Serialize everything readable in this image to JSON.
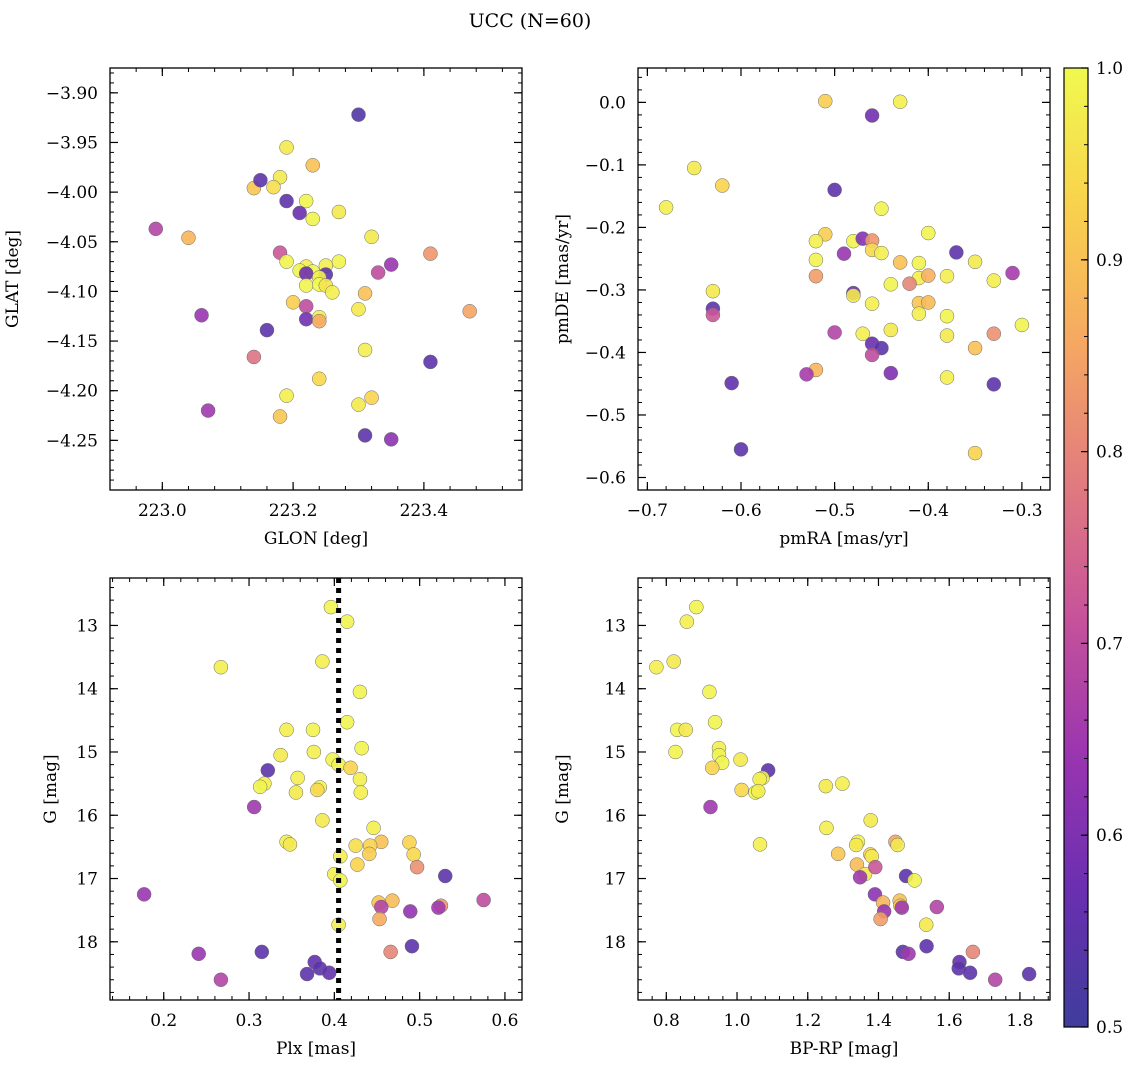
{
  "figure": {
    "title": "UCC (N=60)"
  },
  "colorbar": {
    "min": 0.5,
    "max": 1.0,
    "ticks": [
      "0.5",
      "0.6",
      "0.7",
      "0.8",
      "0.9",
      "1.0"
    ],
    "colormap": "plasma",
    "colors": [
      "#3f3d9c",
      "#6a2fb0",
      "#9b35b0",
      "#c7539a",
      "#e27c7e",
      "#f6a862",
      "#f9d24d",
      "#f0f94e"
    ]
  },
  "chart_data": [
    {
      "type": "scatter",
      "xlabel": "GLON [deg]",
      "ylabel": "GLAT [deg]",
      "xlim": [
        222.92,
        223.55
      ],
      "ylim": [
        -4.3,
        -3.875
      ],
      "xticks": [
        "223.0",
        "223.2",
        "223.4"
      ],
      "yticks": [
        "−3.90",
        "−3.95",
        "−4.00",
        "−4.05",
        "−4.10",
        "−4.15",
        "−4.20",
        "−4.25"
      ],
      "points": [
        [
          223.3,
          -3.922,
          0.53
        ],
        [
          223.19,
          -3.955,
          0.97
        ],
        [
          223.23,
          -3.973,
          0.9
        ],
        [
          223.14,
          -3.996,
          0.91
        ],
        [
          223.15,
          -3.988,
          0.55
        ],
        [
          223.18,
          -3.985,
          0.97
        ],
        [
          223.17,
          -3.995,
          0.95
        ],
        [
          223.19,
          -4.009,
          0.55
        ],
        [
          223.22,
          -4.009,
          0.99
        ],
        [
          223.21,
          -4.021,
          0.57
        ],
        [
          223.23,
          -4.027,
          0.99
        ],
        [
          223.27,
          -4.02,
          0.97
        ],
        [
          222.99,
          -4.037,
          0.68
        ],
        [
          223.04,
          -4.046,
          0.88
        ],
        [
          223.32,
          -4.045,
          0.97
        ],
        [
          223.41,
          -4.062,
          0.83
        ],
        [
          223.18,
          -4.061,
          0.72
        ],
        [
          223.19,
          -4.07,
          0.99
        ],
        [
          223.22,
          -4.075,
          0.98
        ],
        [
          223.27,
          -4.07,
          0.99
        ],
        [
          223.25,
          -4.074,
          0.98
        ],
        [
          223.21,
          -4.079,
          0.99
        ],
        [
          223.23,
          -4.08,
          1.0
        ],
        [
          223.22,
          -4.082,
          0.58
        ],
        [
          223.25,
          -4.083,
          0.55
        ],
        [
          223.24,
          -4.086,
          0.98
        ],
        [
          223.35,
          -4.073,
          0.64
        ],
        [
          223.33,
          -4.081,
          0.7
        ],
        [
          223.22,
          -4.094,
          0.99
        ],
        [
          223.24,
          -4.093,
          1.0
        ],
        [
          223.25,
          -4.094,
          0.96
        ],
        [
          223.26,
          -4.101,
          0.98
        ],
        [
          223.2,
          -4.111,
          0.92
        ],
        [
          223.22,
          -4.115,
          0.7
        ],
        [
          223.31,
          -4.102,
          0.9
        ],
        [
          223.47,
          -4.12,
          0.85
        ],
        [
          223.3,
          -4.118,
          0.97
        ],
        [
          223.06,
          -4.124,
          0.64
        ],
        [
          223.22,
          -4.128,
          0.58
        ],
        [
          223.24,
          -4.126,
          0.98
        ],
        [
          223.24,
          -4.13,
          0.86
        ],
        [
          223.16,
          -4.139,
          0.55
        ],
        [
          223.31,
          -4.159,
          0.98
        ],
        [
          223.14,
          -4.166,
          0.77
        ],
        [
          223.41,
          -4.171,
          0.55
        ],
        [
          223.24,
          -4.188,
          0.94
        ],
        [
          223.19,
          -4.205,
          0.98
        ],
        [
          223.18,
          -4.226,
          0.91
        ],
        [
          223.32,
          -4.207,
          0.93
        ],
        [
          223.3,
          -4.214,
          0.97
        ],
        [
          223.07,
          -4.22,
          0.65
        ],
        [
          223.31,
          -4.245,
          0.55
        ],
        [
          223.35,
          -4.249,
          0.62
        ]
      ]
    },
    {
      "type": "scatter",
      "xlabel": "pmRA [mas/yr]",
      "ylabel": "pmDE [mas/yr]",
      "xlim": [
        -0.71,
        -0.27
      ],
      "ylim": [
        -0.62,
        0.055
      ],
      "xticks": [
        "−0.7",
        "−0.6",
        "−0.5",
        "−0.4",
        "−0.3"
      ],
      "yticks": [
        "0.0",
        "−0.1",
        "−0.2",
        "−0.3",
        "−0.4",
        "−0.5",
        "−0.6"
      ],
      "points": [
        [
          -0.51,
          0.002,
          0.92
        ],
        [
          -0.43,
          0.001,
          0.98
        ],
        [
          -0.46,
          -0.021,
          0.58
        ],
        [
          -0.65,
          -0.105,
          0.97
        ],
        [
          -0.62,
          -0.133,
          0.93
        ],
        [
          -0.68,
          -0.168,
          0.98
        ],
        [
          -0.5,
          -0.14,
          0.55
        ],
        [
          -0.45,
          -0.17,
          0.99
        ],
        [
          -0.4,
          -0.209,
          0.99
        ],
        [
          -0.51,
          -0.211,
          0.92
        ],
        [
          -0.52,
          -0.222,
          0.98
        ],
        [
          -0.48,
          -0.222,
          0.99
        ],
        [
          -0.47,
          -0.218,
          0.61
        ],
        [
          -0.46,
          -0.221,
          0.83
        ],
        [
          -0.46,
          -0.236,
          0.94
        ],
        [
          -0.45,
          -0.241,
          0.98
        ],
        [
          -0.49,
          -0.242,
          0.64
        ],
        [
          -0.52,
          -0.252,
          0.99
        ],
        [
          -0.43,
          -0.256,
          0.9
        ],
        [
          -0.41,
          -0.257,
          0.99
        ],
        [
          -0.35,
          -0.255,
          0.97
        ],
        [
          -0.37,
          -0.24,
          0.55
        ],
        [
          -0.31,
          -0.273,
          0.66
        ],
        [
          -0.38,
          -0.278,
          0.98
        ],
        [
          -0.41,
          -0.281,
          0.98
        ],
        [
          -0.4,
          -0.277,
          0.87
        ],
        [
          -0.42,
          -0.29,
          0.8
        ],
        [
          -0.52,
          -0.278,
          0.84
        ],
        [
          -0.44,
          -0.291,
          0.99
        ],
        [
          -0.33,
          -0.285,
          0.98
        ],
        [
          -0.63,
          -0.302,
          0.97
        ],
        [
          -0.48,
          -0.305,
          0.58
        ],
        [
          -0.48,
          -0.309,
          0.97
        ],
        [
          -0.46,
          -0.322,
          0.98
        ],
        [
          -0.41,
          -0.321,
          0.91
        ],
        [
          -0.4,
          -0.32,
          0.89
        ],
        [
          -0.63,
          -0.33,
          0.55
        ],
        [
          -0.63,
          -0.34,
          0.72
        ],
        [
          -0.41,
          -0.338,
          0.98
        ],
        [
          -0.38,
          -0.342,
          0.99
        ],
        [
          -0.3,
          -0.356,
          0.99
        ],
        [
          -0.44,
          -0.364,
          0.97
        ],
        [
          -0.47,
          -0.37,
          0.98
        ],
        [
          -0.38,
          -0.373,
          0.97
        ],
        [
          -0.33,
          -0.37,
          0.82
        ],
        [
          -0.5,
          -0.368,
          0.68
        ],
        [
          -0.46,
          -0.386,
          0.57
        ],
        [
          -0.45,
          -0.393,
          0.55
        ],
        [
          -0.35,
          -0.393,
          0.9
        ],
        [
          -0.46,
          -0.404,
          0.7
        ],
        [
          -0.52,
          -0.428,
          0.88
        ],
        [
          -0.53,
          -0.435,
          0.66
        ],
        [
          -0.44,
          -0.433,
          0.6
        ],
        [
          -0.38,
          -0.44,
          0.98
        ],
        [
          -0.61,
          -0.449,
          0.56
        ],
        [
          -0.33,
          -0.451,
          0.55
        ],
        [
          -0.6,
          -0.555,
          0.55
        ],
        [
          -0.35,
          -0.561,
          0.93
        ]
      ]
    },
    {
      "type": "scatter",
      "xlabel": "Plx [mas]",
      "ylabel": "G [mag]",
      "xlim": [
        0.137,
        0.62
      ],
      "ylim": [
        18.92,
        12.25
      ],
      "y_inverted": true,
      "xticks": [
        "0.2",
        "0.3",
        "0.4",
        "0.5",
        "0.6"
      ],
      "yticks": [
        "13",
        "14",
        "15",
        "16",
        "17",
        "18"
      ],
      "vline": {
        "x": 0.405,
        "style": "dotted"
      },
      "points": [
        [
          0.396,
          12.71,
          0.99
        ],
        [
          0.415,
          12.94,
          0.99
        ],
        [
          0.267,
          13.66,
          0.98
        ],
        [
          0.386,
          13.57,
          0.98
        ],
        [
          0.43,
          14.05,
          0.99
        ],
        [
          0.415,
          14.53,
          0.99
        ],
        [
          0.344,
          14.65,
          0.98
        ],
        [
          0.375,
          14.65,
          0.99
        ],
        [
          0.432,
          14.94,
          0.99
        ],
        [
          0.337,
          15.05,
          0.97
        ],
        [
          0.376,
          15.0,
          0.98
        ],
        [
          0.398,
          15.12,
          0.99
        ],
        [
          0.405,
          15.2,
          0.99
        ],
        [
          0.419,
          15.25,
          0.93
        ],
        [
          0.322,
          15.29,
          0.55
        ],
        [
          0.357,
          15.41,
          0.98
        ],
        [
          0.43,
          15.43,
          0.98
        ],
        [
          0.318,
          15.5,
          0.98
        ],
        [
          0.313,
          15.55,
          0.99
        ],
        [
          0.383,
          15.56,
          0.99
        ],
        [
          0.38,
          15.6,
          0.94
        ],
        [
          0.355,
          15.64,
          0.97
        ],
        [
          0.431,
          15.64,
          0.98
        ],
        [
          0.306,
          15.87,
          0.65
        ],
        [
          0.386,
          16.08,
          0.97
        ],
        [
          0.446,
          16.2,
          0.98
        ],
        [
          0.455,
          16.42,
          0.9
        ],
        [
          0.488,
          16.43,
          0.93
        ],
        [
          0.344,
          16.42,
          0.98
        ],
        [
          0.348,
          16.46,
          0.97
        ],
        [
          0.425,
          16.48,
          0.95
        ],
        [
          0.442,
          16.48,
          0.93
        ],
        [
          0.441,
          16.61,
          0.92
        ],
        [
          0.493,
          16.62,
          0.94
        ],
        [
          0.407,
          16.65,
          0.98
        ],
        [
          0.427,
          16.78,
          0.93
        ],
        [
          0.497,
          16.82,
          0.82
        ],
        [
          0.4,
          16.93,
          0.98
        ],
        [
          0.53,
          16.96,
          0.55
        ],
        [
          0.407,
          17.03,
          0.99
        ],
        [
          0.177,
          17.25,
          0.64
        ],
        [
          0.452,
          17.38,
          0.9
        ],
        [
          0.468,
          17.35,
          0.89
        ],
        [
          0.575,
          17.34,
          0.7
        ],
        [
          0.525,
          17.43,
          0.83
        ],
        [
          0.455,
          17.45,
          0.68
        ],
        [
          0.522,
          17.46,
          0.65
        ],
        [
          0.489,
          17.52,
          0.63
        ],
        [
          0.453,
          17.64,
          0.86
        ],
        [
          0.405,
          17.73,
          0.98
        ],
        [
          0.491,
          18.07,
          0.55
        ],
        [
          0.315,
          18.16,
          0.55
        ],
        [
          0.241,
          18.19,
          0.64
        ],
        [
          0.466,
          18.16,
          0.8
        ],
        [
          0.377,
          18.32,
          0.56
        ],
        [
          0.383,
          18.42,
          0.55
        ],
        [
          0.394,
          18.49,
          0.56
        ],
        [
          0.368,
          18.51,
          0.55
        ],
        [
          0.267,
          18.6,
          0.68
        ]
      ]
    },
    {
      "type": "scatter",
      "xlabel": "BP-RP [mag]",
      "ylabel": "G [mag]",
      "xlim": [
        0.72,
        1.885
      ],
      "ylim": [
        18.92,
        12.25
      ],
      "y_inverted": true,
      "xticks": [
        "0.8",
        "1.0",
        "1.2",
        "1.4",
        "1.6",
        "1.8"
      ],
      "yticks": [
        "13",
        "14",
        "15",
        "16",
        "17",
        "18"
      ],
      "points": [
        [
          0.885,
          12.71,
          0.99
        ],
        [
          0.858,
          12.94,
          0.98
        ],
        [
          0.772,
          13.66,
          0.98
        ],
        [
          0.821,
          13.57,
          0.97
        ],
        [
          0.922,
          14.05,
          0.99
        ],
        [
          0.938,
          14.53,
          0.99
        ],
        [
          0.831,
          14.65,
          0.99
        ],
        [
          0.855,
          14.65,
          0.97
        ],
        [
          0.826,
          15.0,
          0.99
        ],
        [
          0.949,
          14.94,
          0.98
        ],
        [
          0.949,
          15.05,
          0.99
        ],
        [
          0.958,
          15.17,
          0.99
        ],
        [
          0.93,
          15.25,
          0.93
        ],
        [
          1.01,
          15.12,
          0.97
        ],
        [
          1.088,
          15.29,
          0.55
        ],
        [
          1.072,
          15.41,
          0.98
        ],
        [
          1.064,
          15.43,
          0.98
        ],
        [
          1.052,
          15.64,
          0.99
        ],
        [
          1.06,
          15.62,
          0.98
        ],
        [
          1.013,
          15.6,
          0.94
        ],
        [
          1.251,
          15.54,
          0.97
        ],
        [
          1.298,
          15.5,
          0.98
        ],
        [
          0.925,
          15.87,
          0.65
        ],
        [
          1.378,
          16.08,
          0.97
        ],
        [
          1.253,
          16.2,
          0.98
        ],
        [
          1.342,
          16.42,
          0.99
        ],
        [
          1.337,
          16.47,
          0.97
        ],
        [
          1.448,
          16.42,
          0.85
        ],
        [
          1.454,
          16.47,
          0.97
        ],
        [
          1.065,
          16.46,
          0.98
        ],
        [
          1.286,
          16.61,
          0.91
        ],
        [
          1.377,
          16.62,
          0.93
        ],
        [
          1.381,
          16.65,
          0.97
        ],
        [
          1.339,
          16.78,
          0.89
        ],
        [
          1.362,
          16.93,
          0.97
        ],
        [
          1.391,
          16.82,
          0.72
        ],
        [
          1.348,
          16.98,
          0.65
        ],
        [
          1.478,
          16.96,
          0.55
        ],
        [
          1.502,
          17.03,
          0.99
        ],
        [
          1.39,
          17.25,
          0.62
        ],
        [
          1.413,
          17.38,
          0.88
        ],
        [
          1.46,
          17.35,
          0.9
        ],
        [
          1.462,
          17.43,
          0.91
        ],
        [
          1.466,
          17.46,
          0.65
        ],
        [
          1.565,
          17.45,
          0.68
        ],
        [
          1.416,
          17.52,
          0.64
        ],
        [
          1.406,
          17.64,
          0.84
        ],
        [
          1.535,
          17.73,
          0.97
        ],
        [
          1.536,
          18.07,
          0.55
        ],
        [
          1.469,
          18.16,
          0.55
        ],
        [
          1.485,
          18.19,
          0.65
        ],
        [
          1.667,
          18.16,
          0.8
        ],
        [
          1.629,
          18.32,
          0.56
        ],
        [
          1.627,
          18.42,
          0.55
        ],
        [
          1.659,
          18.49,
          0.55
        ],
        [
          1.826,
          18.51,
          0.55
        ],
        [
          1.73,
          18.6,
          0.68
        ]
      ]
    }
  ]
}
